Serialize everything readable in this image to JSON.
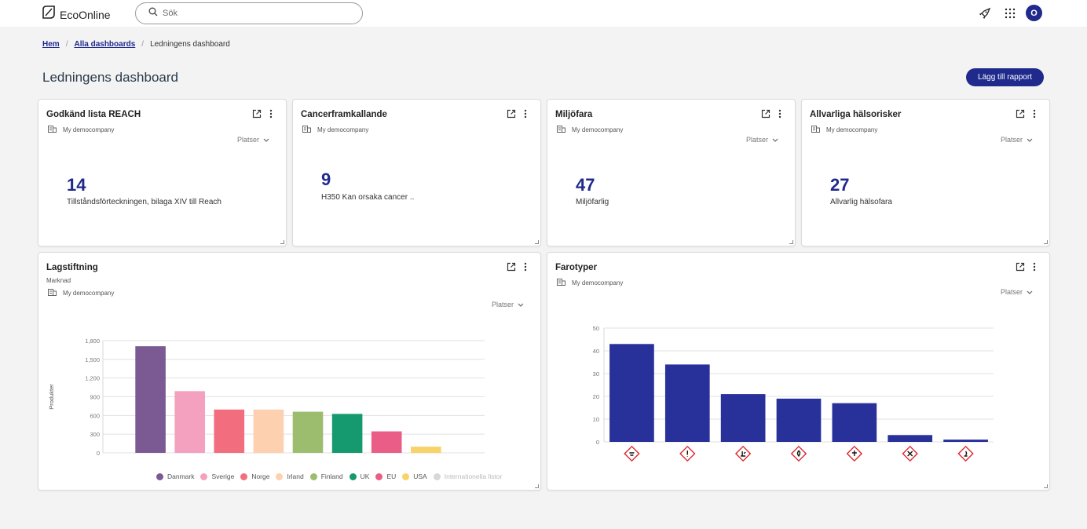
{
  "app": {
    "name": "EcoOnline"
  },
  "search": {
    "placeholder": "Sök"
  },
  "user": {
    "initial": "O"
  },
  "breadcrumb": {
    "home": "Hem",
    "all": "Alla dashboards",
    "current": "Ledningens dashboard"
  },
  "page": {
    "title": "Ledningens dashboard",
    "add_button": "Lägg till rapport"
  },
  "cards": [
    {
      "title": "Godkänd lista REACH",
      "company": "My democompany",
      "filter": "Platser",
      "value": "14",
      "label": "Tillståndsförteckningen, bilaga XIV till Reach"
    },
    {
      "title": "Cancerframkallande",
      "company": "My democompany",
      "value": "9",
      "label": "H350 Kan orsaka cancer .."
    },
    {
      "title": "Miljöfara",
      "company": "My democompany",
      "filter": "Platser",
      "value": "47",
      "label": "Miljöfarlig"
    },
    {
      "title": "Allvarliga hälsorisker",
      "company": "My democompany",
      "filter": "Platser",
      "value": "27",
      "label": "Allvarlig hälsofara"
    }
  ],
  "lagstiftning": {
    "title": "Lagstiftning",
    "subtitle": "Marknad",
    "company": "My democompany",
    "filter": "Platser",
    "legend_disabled": "Internationella listor"
  },
  "farotyper": {
    "title": "Farotyper",
    "company": "My democompany",
    "filter": "Platser"
  },
  "chart_data": [
    {
      "type": "bar",
      "title": "Lagstiftning",
      "ylabel": "Produkter",
      "ylim": [
        0,
        1800
      ],
      "yticks": [
        "0",
        "300",
        "600",
        "900",
        "1,200",
        "1,500",
        "1,800"
      ],
      "categories": [
        "Danmark",
        "Sverige",
        "Norge",
        "Irland",
        "Finland",
        "UK",
        "EU",
        "USA"
      ],
      "values": [
        1710,
        990,
        695,
        695,
        660,
        625,
        345,
        100
      ],
      "colors": [
        "#7b5a93",
        "#f4a0bf",
        "#f26d7d",
        "#fdd0b0",
        "#9cbd6e",
        "#149a6e",
        "#e95d86",
        "#f8d36a"
      ],
      "legend": [
        "Danmark",
        "Sverige",
        "Norge",
        "Irland",
        "Finland",
        "UK",
        "EU",
        "USA",
        "Internationella listor"
      ],
      "legend_colors": [
        "#7b5a93",
        "#f4a0bf",
        "#f26d7d",
        "#fdd0b0",
        "#9cbd6e",
        "#149a6e",
        "#e95d86",
        "#f8d36a",
        "#d8d8d8"
      ],
      "grid": true
    },
    {
      "type": "bar",
      "title": "Farotyper",
      "ylim": [
        0,
        50
      ],
      "yticks": [
        "0",
        "10",
        "20",
        "30",
        "40",
        "50"
      ],
      "categories": [
        "corrosion-pictogram",
        "exclamation-pictogram",
        "environment-pictogram",
        "flame-pictogram",
        "health-hazard-pictogram",
        "skull-pictogram",
        "flame-over-circle-pictogram"
      ],
      "values": [
        43,
        34,
        21,
        19,
        17,
        3,
        1
      ],
      "color": "#28309a",
      "grid": true
    }
  ]
}
